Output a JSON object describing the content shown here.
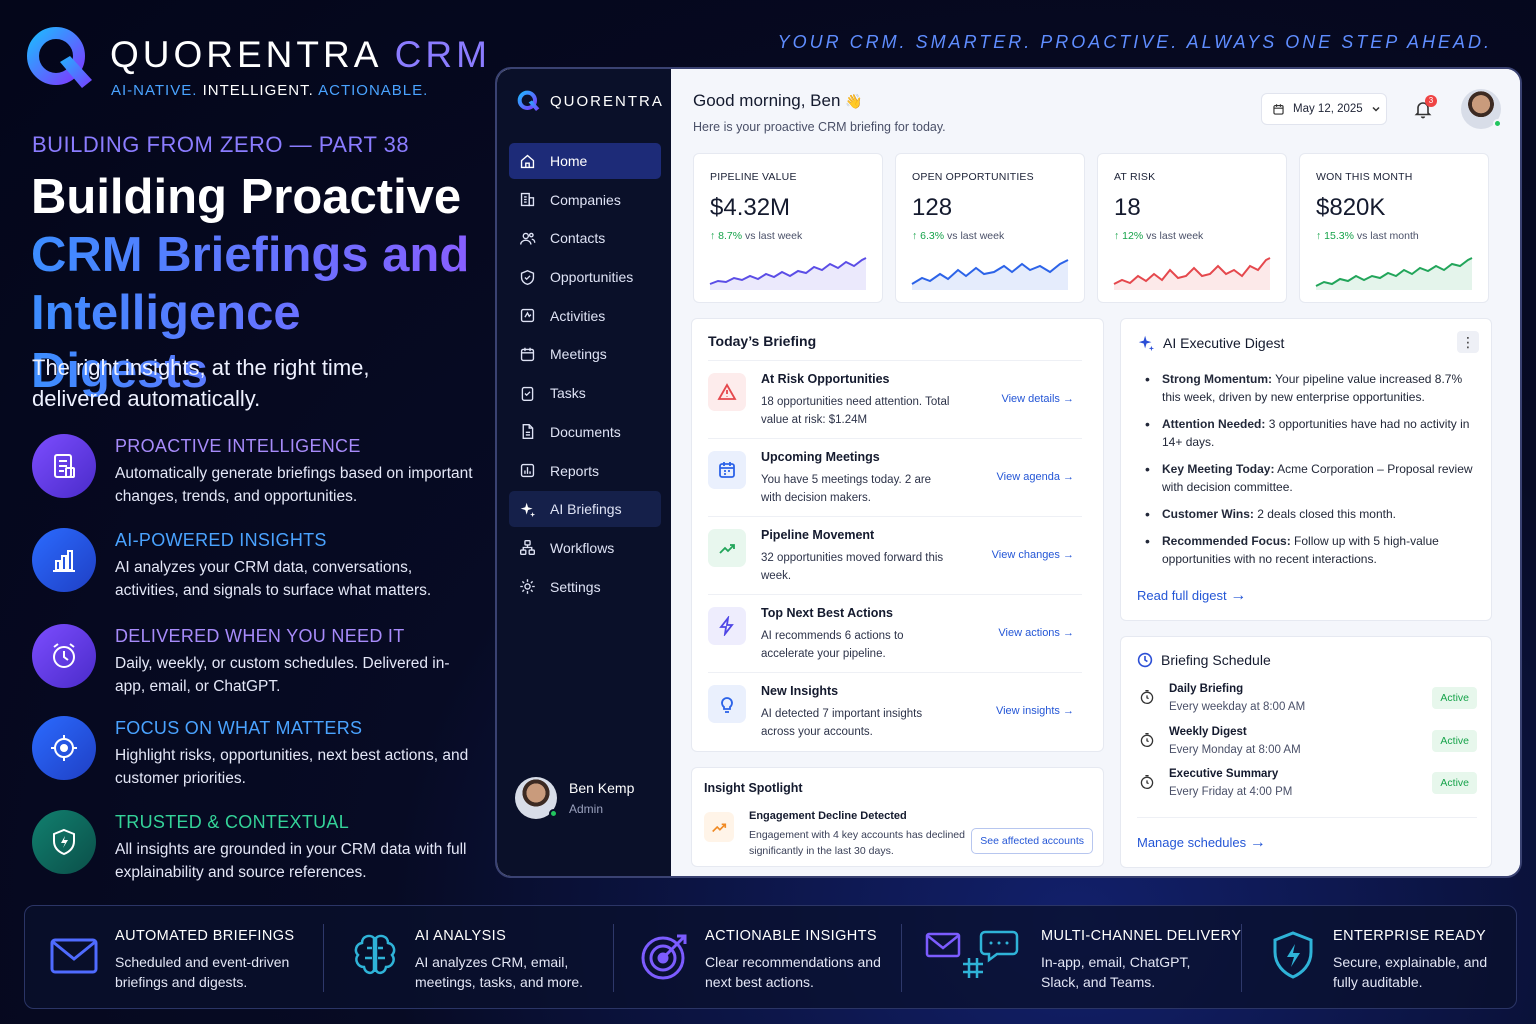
{
  "brand": {
    "name": "QUORENTRA",
    "crm": "CRM",
    "tag_1": "AI-NATIVE.",
    "tag_2": "INTELLIGENT.",
    "tag_3": "ACTIONABLE."
  },
  "tagline": "YOUR CRM. SMARTER. PROACTIVE. ALWAYS ONE STEP AHEAD.",
  "series": "BUILDING FROM ZERO — PART 38",
  "headline": {
    "line1": "Building Proactive",
    "line2": "CRM Briefings and",
    "line3": "Intelligence Digests"
  },
  "subhead": "The right insights, at the right time, delivered automatically.",
  "features": [
    {
      "title": "PROACTIVE INTELLIGENCE",
      "desc": "Automatically generate briefings based on important changes, trends, and opportunities.",
      "icon": "report-icon"
    },
    {
      "title": "AI-POWERED INSIGHTS",
      "desc": "AI analyzes your CRM data, conversations, activities, and signals to surface what matters.",
      "icon": "bar-chart-icon"
    },
    {
      "title": "DELIVERED WHEN YOU NEED IT",
      "desc": "Daily, weekly, or custom schedules. Delivered in-app, email, or ChatGPT.",
      "icon": "alarm-clock-icon"
    },
    {
      "title": "FOCUS ON WHAT MATTERS",
      "desc": "Highlight risks, opportunities, next best actions, and customer priorities.",
      "icon": "target-icon"
    },
    {
      "title": "TRUSTED & CONTEXTUAL",
      "desc": "All insights are grounded in your CRM data with full explainability and source references.",
      "icon": "shield-icon"
    }
  ],
  "colors": {
    "purple": "#a78bfa",
    "blue": "#4aa3ff",
    "green": "#34d399",
    "accent": "#2456d6"
  },
  "app": {
    "logo_text": "QUORENTRA",
    "nav": [
      {
        "label": "Home",
        "icon": "home-icon"
      },
      {
        "label": "Companies",
        "icon": "building-icon"
      },
      {
        "label": "Contacts",
        "icon": "users-icon"
      },
      {
        "label": "Opportunities",
        "icon": "shield-check-icon"
      },
      {
        "label": "Activities",
        "icon": "activity-icon"
      },
      {
        "label": "Meetings",
        "icon": "calendar-icon"
      },
      {
        "label": "Tasks",
        "icon": "clipboard-icon"
      },
      {
        "label": "Documents",
        "icon": "document-icon"
      },
      {
        "label": "Reports",
        "icon": "reports-icon"
      },
      {
        "label": "AI Briefings",
        "icon": "sparkle-icon"
      },
      {
        "label": "Workflows",
        "icon": "workflow-icon"
      },
      {
        "label": "Settings",
        "icon": "gear-icon"
      }
    ],
    "user": {
      "name": "Ben Kemp",
      "role": "Admin"
    },
    "greeting": "Good morning, Ben",
    "greeting_emoji": "👋",
    "greeting_sub": "Here is your proactive CRM briefing for today.",
    "date": "May 12, 2025",
    "notifications": "3",
    "kpis": [
      {
        "label": "PIPELINE VALUE",
        "value": "$4.32M",
        "change": "8.7%",
        "period": "vs last week",
        "color": "#5b4de6"
      },
      {
        "label": "OPEN OPPORTUNITIES",
        "value": "128",
        "change": "6.3%",
        "period": "vs last week",
        "color": "#2c63e8"
      },
      {
        "label": "AT RISK",
        "value": "18",
        "change": "12%",
        "period": "vs last week",
        "color": "#e5484d"
      },
      {
        "label": "WON THIS MONTH",
        "value": "$820K",
        "change": "15.3%",
        "period": "vs last month",
        "color": "#22a55a"
      }
    ],
    "briefing": {
      "title": "Today’s Briefing",
      "rows": [
        {
          "title": "At Risk Opportunities",
          "desc": "18 opportunities need attention. Total value at risk: $1.24M",
          "link": "View details",
          "icon": "warning-icon"
        },
        {
          "title": "Upcoming Meetings",
          "desc": "You have 5 meetings today. 2 are with decision makers.",
          "link": "View agenda",
          "icon": "calendar-icon"
        },
        {
          "title": "Pipeline Movement",
          "desc": "32 opportunities moved forward this week.",
          "link": "View changes",
          "icon": "trend-up-icon"
        },
        {
          "title": "Top Next Best Actions",
          "desc": "AI recommends 6 actions to accelerate your pipeline.",
          "link": "View actions",
          "icon": "lightning-icon"
        },
        {
          "title": "New Insights",
          "desc": "AI detected 7 important insights across your accounts.",
          "link": "View insights",
          "icon": "lightbulb-icon"
        }
      ]
    },
    "digest": {
      "title": "AI Executive Digest",
      "items": [
        {
          "b": "Strong Momentum:",
          "t": "Your pipeline value increased 8.7% this week, driven by new enterprise opportunities."
        },
        {
          "b": "Attention Needed:",
          "t": "3 opportunities have had no activity in 14+ days."
        },
        {
          "b": "Key Meeting Today:",
          "t": "Acme Corporation – Proposal review with decision committee."
        },
        {
          "b": "Customer Wins:",
          "t": "2 deals closed this month."
        },
        {
          "b": "Recommended Focus:",
          "t": "Follow up with 5 high-value opportunities with no recent interactions."
        }
      ],
      "link": "Read full digest"
    },
    "schedule": {
      "title": "Briefing Schedule",
      "rows": [
        {
          "title": "Daily Briefing",
          "when": "Every weekday at 8:00 AM",
          "status": "Active"
        },
        {
          "title": "Weekly Digest",
          "when": "Every Monday at 8:00 AM",
          "status": "Active"
        },
        {
          "title": "Executive Summary",
          "when": "Every Friday at 4:00 PM",
          "status": "Active"
        }
      ],
      "link": "Manage schedules"
    },
    "spotlight": {
      "title": "Insight Spotlight",
      "item_title": "Engagement Decline Detected",
      "item_desc": "Engagement with 4 key accounts has declined significantly in the last 30 days.",
      "button": "See affected accounts"
    }
  },
  "strip": [
    {
      "title": "AUTOMATED BRIEFINGS",
      "desc": "Scheduled and event-driven briefings and digests.",
      "icon": "envelope-icon"
    },
    {
      "title": "AI ANALYSIS",
      "desc": "AI analyzes CRM, email, meetings, tasks, and more.",
      "icon": "brain-icon"
    },
    {
      "title": "ACTIONABLE INSIGHTS",
      "desc": "Clear recommendations and next best actions.",
      "icon": "target-arrow-icon"
    },
    {
      "title": "MULTI-CHANNEL DELIVERY",
      "desc": "In-app, email, ChatGPT, Slack, and Teams.",
      "icon": "channels-icon"
    },
    {
      "title": "ENTERPRISE READY",
      "desc": "Secure, explainable, and fully auditable.",
      "icon": "shield-bolt-icon"
    }
  ]
}
